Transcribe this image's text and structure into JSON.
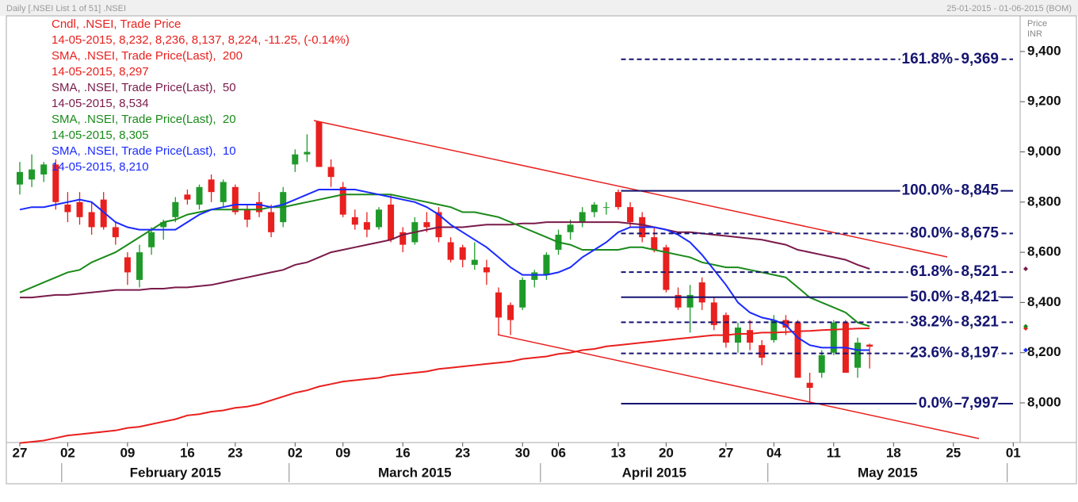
{
  "chart_data": {
    "type": "candlestick",
    "header_left": "Daily [.NSEI List 1 of 51] .NSEI",
    "header_right": "25-01-2015 - 01-06-2015 (BOM)",
    "y_axis_label": "Price",
    "y_axis_unit": "INR",
    "categories": [
      "27",
      null,
      null,
      null,
      "02",
      null,
      null,
      null,
      null,
      "09",
      null,
      null,
      null,
      null,
      "16",
      null,
      null,
      null,
      "23",
      null,
      null,
      null,
      null,
      "02",
      null,
      null,
      null,
      "09",
      null,
      null,
      null,
      null,
      "16",
      null,
      null,
      null,
      null,
      "23",
      null,
      null,
      null,
      null,
      "30",
      null,
      null,
      "06",
      null,
      null,
      null,
      null,
      "13",
      null,
      null,
      null,
      "20",
      null,
      null,
      null,
      null,
      "27",
      null,
      null,
      null,
      "04",
      null,
      null,
      null,
      null,
      "11",
      null,
      null,
      null,
      null,
      "18",
      null,
      null,
      null,
      null,
      "25",
      null,
      null,
      null,
      null,
      "01"
    ],
    "months": [
      "February 2015",
      "March 2015",
      "April 2015",
      "May 2015"
    ],
    "ylim": [
      7842,
      9542
    ],
    "yticks": [
      {
        "value": 8000,
        "label": "8,000"
      },
      {
        "value": 8200,
        "label": "8,200"
      },
      {
        "value": 8400,
        "label": "8,400"
      },
      {
        "value": 8600,
        "label": "8,600"
      },
      {
        "value": 8800,
        "label": "8,800"
      },
      {
        "value": 9000,
        "label": "9,000"
      },
      {
        "value": 9200,
        "label": "9,200"
      },
      {
        "value": 9400,
        "label": "9,400"
      }
    ],
    "candles": {
      "name": "Cndl, .NSEI, Trade Price",
      "info": "14-05-2015, 8,232, 8,236, 8,137, 8,224, -11.25, (-0.14%)",
      "info_color": "#e8201e",
      "up_color": "#1f9a2a",
      "down_color": "#e8201e",
      "open": [
        8870,
        8890,
        8910,
        8950,
        8790,
        8800,
        8760,
        8810,
        8700,
        8580,
        8490,
        8620,
        8700,
        8740,
        8830,
        8790,
        8890,
        8800,
        8860,
        8770,
        8800,
        8760,
        8720,
        8950,
        8990,
        9120,
        8940,
        8860,
        8740,
        8720,
        8700,
        8790,
        8680,
        8640,
        8720,
        8760,
        8640,
        8620,
        8550,
        8540,
        8440,
        8390,
        8380,
        8490,
        8510,
        8610,
        8680,
        8720,
        8760,
        8780,
        8840,
        8780,
        8740,
        8660,
        8620,
        8430,
        8380,
        8480,
        8400,
        8350,
        8240,
        8290,
        8230,
        8250,
        8330,
        8320,
        8080,
        8120,
        8200,
        8320,
        8140,
        8232,
        null,
        null,
        null,
        null,
        null,
        null,
        null,
        null,
        null,
        null,
        null,
        null
      ],
      "high": [
        8960,
        8990,
        8960,
        8970,
        8840,
        8840,
        8800,
        8840,
        8720,
        8600,
        8630,
        8700,
        8730,
        8820,
        8850,
        8870,
        8910,
        8890,
        8870,
        8790,
        8840,
        8790,
        8860,
        9010,
        9070,
        9120,
        8970,
        8880,
        8770,
        8760,
        8780,
        8830,
        8700,
        8740,
        8760,
        8780,
        8660,
        8630,
        8640,
        8570,
        8460,
        8400,
        8500,
        8530,
        8600,
        8690,
        8730,
        8780,
        8800,
        8800,
        8850,
        8800,
        8760,
        8700,
        8630,
        8460,
        8470,
        8500,
        8420,
        8360,
        8320,
        8330,
        8250,
        8350,
        8350,
        8330,
        8120,
        8210,
        8330,
        8330,
        8260,
        8236,
        null,
        null,
        null,
        null,
        null,
        null,
        null,
        null,
        null,
        null,
        null,
        null
      ],
      "low": [
        8830,
        8860,
        8880,
        8770,
        8720,
        8710,
        8670,
        8690,
        8630,
        8470,
        8460,
        8590,
        8650,
        8720,
        8790,
        8770,
        8800,
        8780,
        8750,
        8700,
        8740,
        8660,
        8700,
        8920,
        8960,
        8940,
        8860,
        8740,
        8690,
        8660,
        8690,
        8640,
        8600,
        8630,
        8680,
        8640,
        8560,
        8540,
        8530,
        8470,
        8270,
        8270,
        8370,
        8460,
        8490,
        8590,
        8650,
        8700,
        8740,
        8750,
        8770,
        8700,
        8640,
        8600,
        8440,
        8370,
        8280,
        8370,
        8290,
        8220,
        8200,
        8210,
        8150,
        8240,
        8270,
        8100,
        7997,
        8100,
        8190,
        8120,
        8100,
        8137,
        null,
        null,
        null,
        null,
        null,
        null,
        null,
        null,
        null,
        null,
        null,
        null
      ],
      "close": [
        8920,
        8930,
        8950,
        8800,
        8760,
        8740,
        8700,
        8700,
        8660,
        8520,
        8600,
        8680,
        8720,
        8800,
        8810,
        8860,
        8840,
        8880,
        8760,
        8730,
        8760,
        8680,
        8840,
        8990,
        9000,
        8940,
        8900,
        8750,
        8710,
        8690,
        8770,
        8650,
        8630,
        8720,
        8700,
        8660,
        8570,
        8570,
        8570,
        8520,
        8340,
        8330,
        8490,
        8520,
        8590,
        8670,
        8710,
        8760,
        8790,
        8780,
        8780,
        8720,
        8660,
        8610,
        8450,
        8380,
        8430,
        8400,
        8310,
        8240,
        8300,
        8240,
        8180,
        8330,
        8300,
        8100,
        8060,
        8190,
        8320,
        8120,
        8240,
        8224,
        null,
        null,
        null,
        null,
        null,
        null,
        null,
        null,
        null,
        null,
        null,
        null
      ]
    },
    "series": [
      {
        "name": "SMA, .NSEI, Trade Price(Last),  200",
        "info": "14-05-2015, 8,297",
        "color": "#e8201e",
        "values": [
          7840,
          7845,
          7850,
          7860,
          7870,
          7875,
          7880,
          7885,
          7890,
          7900,
          7905,
          7915,
          7925,
          7935,
          7950,
          7955,
          7965,
          7970,
          7980,
          7985,
          7995,
          8010,
          8025,
          8040,
          8050,
          8065,
          8075,
          8085,
          8090,
          8095,
          8100,
          8110,
          8115,
          8120,
          8125,
          8135,
          8140,
          8145,
          8150,
          8155,
          8160,
          8165,
          8175,
          8180,
          8185,
          8195,
          8200,
          8210,
          8215,
          8225,
          8230,
          8235,
          8240,
          8245,
          8250,
          8255,
          8260,
          8265,
          8270,
          8270,
          8275,
          8275,
          8280,
          8280,
          8282,
          8285,
          8287,
          8290,
          8292,
          8294,
          8296,
          8297,
          null,
          null,
          null,
          null,
          null,
          null,
          null,
          null,
          null,
          null,
          null,
          null
        ]
      },
      {
        "name": "SMA, .NSEI, Trade Price(Last),  50",
        "info": "14-05-2015, 8,534",
        "color": "#7a1a4a",
        "values": [
          8420,
          8420,
          8425,
          8430,
          8430,
          8435,
          8440,
          8445,
          8450,
          8450,
          8450,
          8455,
          8455,
          8460,
          8460,
          8465,
          8470,
          8480,
          8490,
          8500,
          8510,
          8520,
          8530,
          8550,
          8560,
          8580,
          8600,
          8610,
          8620,
          8630,
          8640,
          8650,
          8670,
          8680,
          8690,
          8700,
          8700,
          8700,
          8705,
          8710,
          8710,
          8710,
          8715,
          8715,
          8720,
          8720,
          8720,
          8720,
          8720,
          8720,
          8720,
          8715,
          8710,
          8700,
          8690,
          8680,
          8680,
          8675,
          8670,
          8665,
          8660,
          8655,
          8650,
          8640,
          8630,
          8610,
          8600,
          8590,
          8580,
          8570,
          8550,
          8534,
          null,
          null,
          null,
          null,
          null,
          null,
          null,
          null,
          null,
          null,
          null,
          null
        ]
      },
      {
        "name": "SMA, .NSEI, Trade Price(Last),  20",
        "info": "14-05-2015, 8,305",
        "color": "#1a8a1a",
        "values": [
          8440,
          8460,
          8480,
          8500,
          8520,
          8530,
          8560,
          8580,
          8600,
          8630,
          8660,
          8690,
          8720,
          8730,
          8750,
          8760,
          8770,
          8770,
          8770,
          8770,
          8770,
          8780,
          8780,
          8790,
          8800,
          8810,
          8820,
          8830,
          8830,
          8830,
          8830,
          8830,
          8820,
          8810,
          8800,
          8790,
          8780,
          8760,
          8760,
          8750,
          8740,
          8720,
          8700,
          8680,
          8660,
          8640,
          8630,
          8610,
          8610,
          8610,
          8610,
          8620,
          8620,
          8610,
          8600,
          8590,
          8580,
          8560,
          8550,
          8540,
          8540,
          8530,
          8520,
          8510,
          8500,
          8460,
          8420,
          8400,
          8380,
          8360,
          8320,
          8305,
          null,
          null,
          null,
          null,
          null,
          null,
          null,
          null,
          null,
          null,
          null,
          null
        ]
      },
      {
        "name": "SMA, .NSEI, Trade Price(Last),  10",
        "info": "14-05-2015, 8,210",
        "color": "#1a2aff",
        "values": [
          8770,
          8780,
          8780,
          8790,
          8800,
          8810,
          8800,
          8760,
          8720,
          8700,
          8690,
          8690,
          8690,
          8690,
          8720,
          8750,
          8770,
          8780,
          8790,
          8790,
          8790,
          8780,
          8790,
          8810,
          8830,
          8850,
          8850,
          8850,
          8850,
          8840,
          8830,
          8820,
          8810,
          8800,
          8780,
          8750,
          8710,
          8680,
          8650,
          8620,
          8580,
          8540,
          8510,
          8510,
          8510,
          8520,
          8540,
          8580,
          8610,
          8640,
          8680,
          8700,
          8700,
          8700,
          8690,
          8670,
          8640,
          8590,
          8530,
          8470,
          8400,
          8360,
          8340,
          8330,
          8310,
          8260,
          8230,
          8220,
          8220,
          8220,
          8210,
          8210,
          null,
          null,
          null,
          null,
          null,
          null,
          null,
          null,
          null,
          null,
          null,
          null
        ]
      }
    ],
    "fib_color": "#141470",
    "fib_levels": [
      {
        "label": "161.8%",
        "value": 9369,
        "value_label": "9,369",
        "dashed": true
      },
      {
        "label": "100.0%",
        "value": 8845,
        "value_label": "8,845",
        "dashed": false
      },
      {
        "label": "80.0%",
        "value": 8675,
        "value_label": "8,675",
        "dashed": true
      },
      {
        "label": "61.8%",
        "value": 8521,
        "value_label": "8,521",
        "dashed": true
      },
      {
        "label": "50.0%",
        "value": 8421,
        "value_label": "8,421",
        "dashed": false
      },
      {
        "label": "38.2%",
        "value": 8321,
        "value_label": "8,321",
        "dashed": true
      },
      {
        "label": "23.6%",
        "value": 8197,
        "value_label": "8,197",
        "dashed": true
      },
      {
        "label": "0.0%",
        "value": 7997,
        "value_label": "7,997",
        "dashed": false
      }
    ]
  }
}
